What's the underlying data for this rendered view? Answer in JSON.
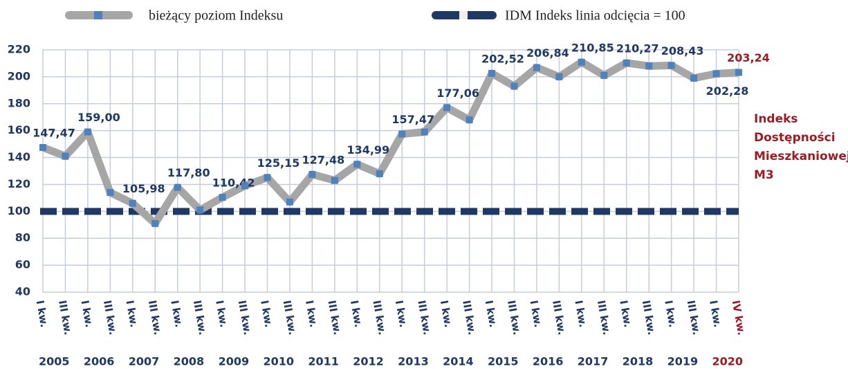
{
  "chart_data": {
    "type": "line",
    "series": [
      {
        "name": "bieżący poziom Indeksu",
        "color": "#a6a6a6",
        "marker_color": "#4f81bd",
        "values": [
          147.47,
          141,
          159.0,
          114,
          105.98,
          91,
          117.8,
          101,
          110.42,
          119,
          125.15,
          107,
          127.48,
          123,
          134.99,
          128,
          157.47,
          159,
          177.06,
          168,
          202.52,
          193,
          206.84,
          200,
          210.85,
          201,
          210.27,
          208,
          208.43,
          199,
          202.28,
          203.24
        ],
        "value_labels": [
          "147,47",
          null,
          "159,00",
          null,
          "105,98",
          null,
          "117,80",
          null,
          "110,42",
          null,
          "125,15",
          null,
          "127,48",
          null,
          "134,99",
          null,
          "157,47",
          null,
          "177,06",
          null,
          "202,52",
          null,
          "206,84",
          null,
          "210,85",
          null,
          "210,27",
          null,
          "208,43",
          null,
          "202,28",
          "203,24"
        ]
      }
    ],
    "reference": {
      "name": "IDM Indeks linia odcięcia = 100",
      "value": 100,
      "color": "#1f3864"
    },
    "categories": [
      "I kw.",
      "III kw.",
      "I kw.",
      "III kw.",
      "I kw.",
      "III kw.",
      "I kw.",
      "III kw.",
      "I kw.",
      "III kw.",
      "I kw.",
      "III kw.",
      "I kw.",
      "III kw.",
      "I kw.",
      "III kw.",
      "I kw.",
      "III kw.",
      "I kw.",
      "III kw.",
      "I kw.",
      "III kw.",
      "I kw.",
      "III kw.",
      "I kw.",
      "III kw.",
      "I kw.",
      "III kw.",
      "I kw.",
      "III kw.",
      "I kw.",
      "IV kw."
    ],
    "years": [
      "2005",
      "2006",
      "2007",
      "2008",
      "2009",
      "2010",
      "2011",
      "2012",
      "2013",
      "2014",
      "2015",
      "2016",
      "2017",
      "2018",
      "2019",
      "2020"
    ],
    "side_label": [
      "Indeks",
      "Dostępności",
      "Mieszkaniowej",
      "M3"
    ],
    "ylim": [
      40,
      220
    ],
    "yticks": [
      40,
      60,
      80,
      100,
      120,
      140,
      160,
      180,
      200,
      220
    ],
    "grid": true,
    "text_color": "#1f3864",
    "highlight_color": "#9b1c24"
  }
}
